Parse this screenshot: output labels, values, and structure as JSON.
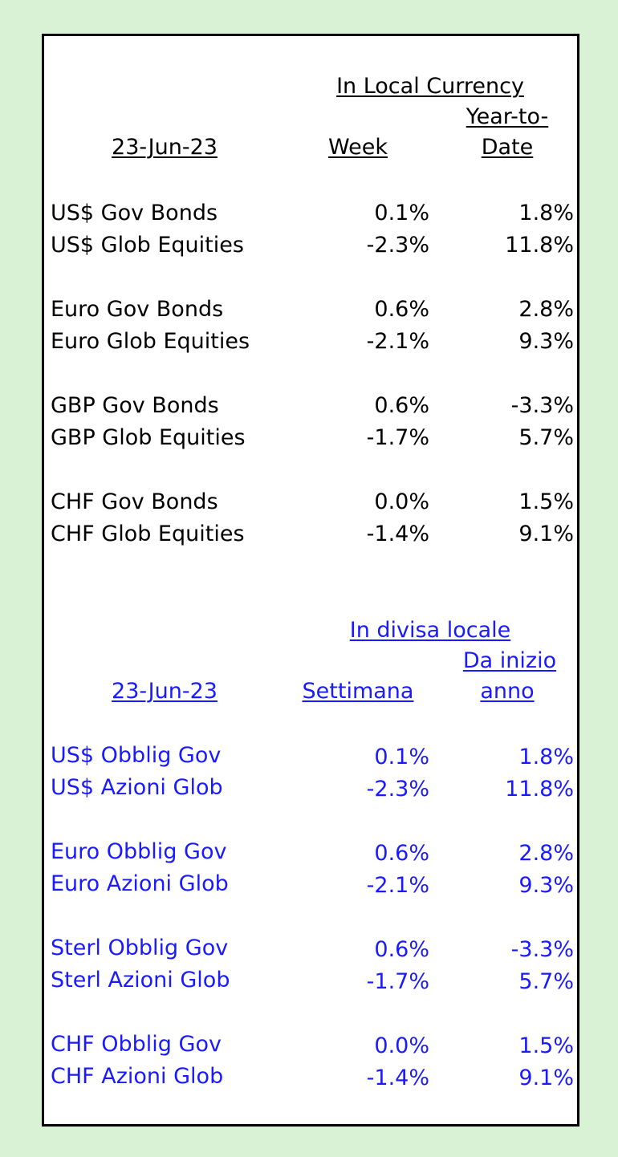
{
  "colors": {
    "background": "#d9f2d6",
    "panel": "#ffffff",
    "english_text": "#000000",
    "italian_text": "#1a1aff"
  },
  "english": {
    "header_group": "In Local Currency",
    "date": "23-Jun-23",
    "col_week": "Week",
    "col_ytd_line1": "Year-to-",
    "col_ytd_line2": "Date",
    "rows": [
      {
        "label": "US$ Gov Bonds",
        "week": "0.1%",
        "ytd": "1.8%"
      },
      {
        "label": "US$ Glob Equities",
        "week": "-2.3%",
        "ytd": "11.8%"
      },
      {
        "label": "Euro Gov Bonds",
        "week": "0.6%",
        "ytd": "2.8%"
      },
      {
        "label": "Euro Glob Equities",
        "week": "-2.1%",
        "ytd": "9.3%"
      },
      {
        "label": "GBP Gov Bonds",
        "week": "0.6%",
        "ytd": "-3.3%"
      },
      {
        "label": "GBP Glob Equities",
        "week": "-1.7%",
        "ytd": "5.7%"
      },
      {
        "label": "CHF Gov Bonds",
        "week": "0.0%",
        "ytd": "1.5%"
      },
      {
        "label": "CHF Glob Equities",
        "week": "-1.4%",
        "ytd": "9.1%"
      }
    ]
  },
  "italian": {
    "header_group": "In divisa locale",
    "date": "23-Jun-23",
    "col_week": "Settimana",
    "col_ytd_line1": "Da inizio",
    "col_ytd_line2": "anno",
    "rows": [
      {
        "label": "US$ Obblig Gov",
        "week": "0.1%",
        "ytd": "1.8%"
      },
      {
        "label": "US$ Azioni Glob",
        "week": "-2.3%",
        "ytd": "11.8%"
      },
      {
        "label": "Euro Obblig Gov",
        "week": "0.6%",
        "ytd": "2.8%"
      },
      {
        "label": "Euro Azioni Glob",
        "week": "-2.1%",
        "ytd": "9.3%"
      },
      {
        "label": "Sterl Obblig Gov",
        "week": "0.6%",
        "ytd": "-3.3%"
      },
      {
        "label": "Sterl Azioni Glob",
        "week": "-1.7%",
        "ytd": "5.7%"
      },
      {
        "label": "CHF Obblig Gov",
        "week": "0.0%",
        "ytd": "1.5%"
      },
      {
        "label": "CHF Azioni Glob",
        "week": "-1.4%",
        "ytd": "9.1%"
      }
    ]
  }
}
